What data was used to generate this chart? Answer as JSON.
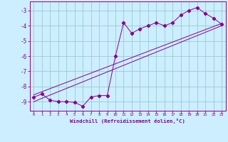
{
  "xlabel": "Windchill (Refroidissement éolien,°C)",
  "bg_color": "#cceeff",
  "line_color": "#880088",
  "grid_color": "#99cccc",
  "xlim": [
    -0.5,
    23.5
  ],
  "ylim": [
    -9.6,
    -2.4
  ],
  "yticks": [
    -9,
    -8,
    -7,
    -6,
    -5,
    -4,
    -3
  ],
  "xticks": [
    0,
    1,
    2,
    3,
    4,
    5,
    6,
    7,
    8,
    9,
    10,
    11,
    12,
    13,
    14,
    15,
    16,
    17,
    18,
    19,
    20,
    21,
    22,
    23
  ],
  "series1_x": [
    0,
    1,
    2,
    3,
    4,
    5,
    6,
    7,
    8,
    9,
    10,
    11,
    12,
    13,
    14,
    15,
    16,
    17,
    18,
    19,
    20,
    21,
    22,
    23
  ],
  "series1_y": [
    -8.7,
    -8.5,
    -8.9,
    -9.0,
    -9.0,
    -9.05,
    -9.3,
    -8.7,
    -8.6,
    -8.6,
    -6.0,
    -3.8,
    -4.5,
    -4.2,
    -4.0,
    -3.8,
    -4.0,
    -3.8,
    -3.3,
    -3.0,
    -2.8,
    -3.2,
    -3.5,
    -3.9
  ],
  "series2_x": [
    0,
    23
  ],
  "series2_y": [
    -8.55,
    -3.85
  ],
  "series3_x": [
    0,
    23
  ],
  "series3_y": [
    -9.0,
    -4.0
  ]
}
